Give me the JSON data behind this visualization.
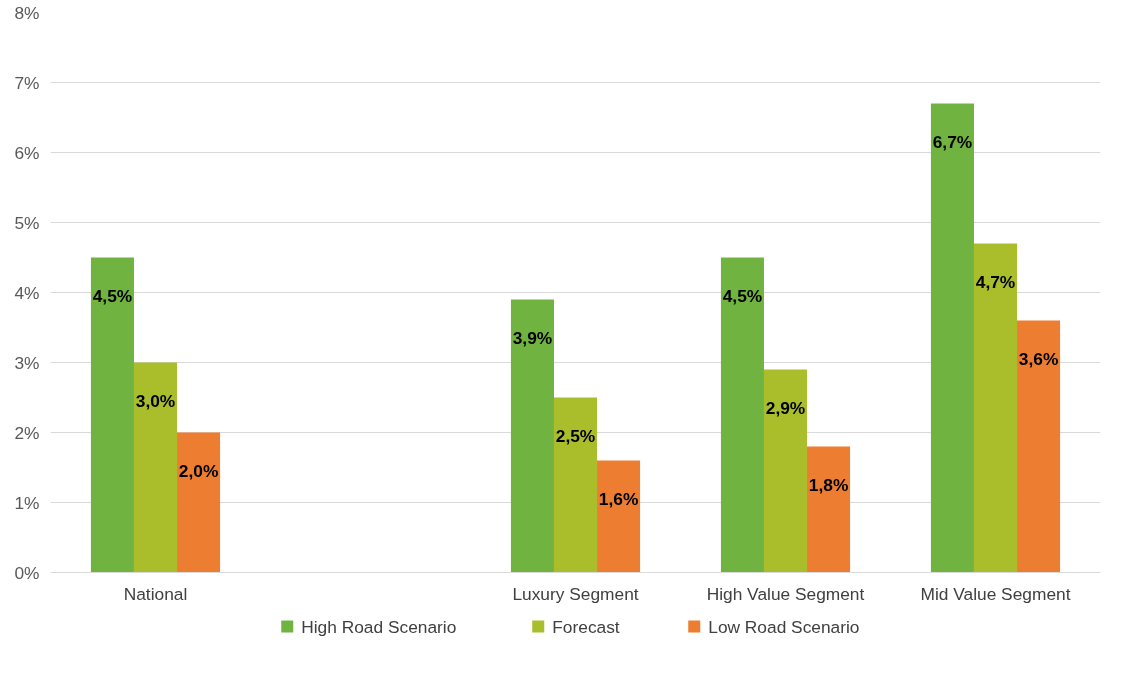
{
  "chart_data": {
    "type": "bar",
    "categories": [
      "National",
      null,
      "Luxury Segment",
      "High Value Segment",
      "Mid Value Segment"
    ],
    "series": [
      {
        "name": "High Road Scenario",
        "color": "#70b340",
        "values": [
          4.5,
          null,
          3.9,
          4.5,
          6.7
        ],
        "value_labels": [
          "4,5%",
          null,
          "3,9%",
          "4,5%",
          "6,7%"
        ]
      },
      {
        "name": "Forecast",
        "color": "#aabd2b",
        "values": [
          3.0,
          null,
          2.5,
          2.9,
          4.7
        ],
        "value_labels": [
          "3,0%",
          null,
          "2,5%",
          "2,9%",
          "4,7%"
        ]
      },
      {
        "name": "Low Road Scenario",
        "color": "#ed7d31",
        "values": [
          2.0,
          null,
          1.6,
          1.8,
          3.6
        ],
        "value_labels": [
          "2,0%",
          null,
          "1,6%",
          "1,8%",
          "3,6%"
        ]
      }
    ],
    "ylim": [
      0,
      8
    ],
    "yticks": [
      {
        "value": 0,
        "label": "0%"
      },
      {
        "value": 1,
        "label": "1%"
      },
      {
        "value": 2,
        "label": "2%"
      },
      {
        "value": 3,
        "label": "3%"
      },
      {
        "value": 4,
        "label": "4%"
      },
      {
        "value": 5,
        "label": "5%"
      },
      {
        "value": 6,
        "label": "6%"
      },
      {
        "value": 7,
        "label": "7%"
      },
      {
        "value": 8,
        "label": "8%"
      }
    ],
    "grid": "y",
    "legend": "bottom"
  }
}
